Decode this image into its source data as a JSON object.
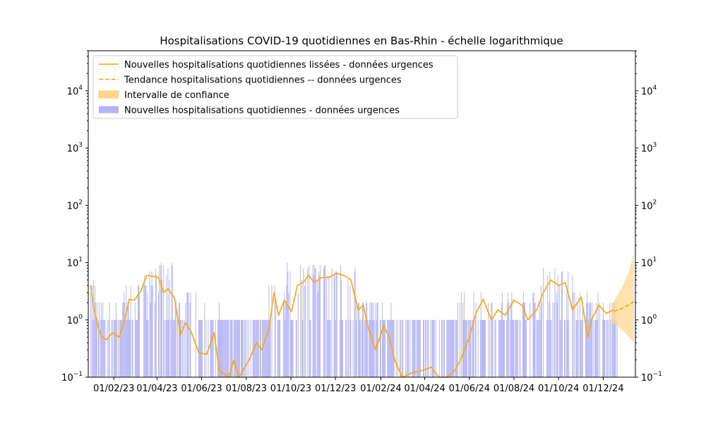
{
  "chart_data": {
    "type": "bar",
    "title": "Hospitalisations COVID-19 quotidiennes en Bas-Rhin - échelle logarithmique",
    "xlabel": "",
    "ylabel": "",
    "y_scale": "log",
    "ylim": [
      0.1,
      50000
    ],
    "xlim": [
      "2022-12-28",
      "2025-01-14"
    ],
    "x_tick_labels": [
      "01/02/23",
      "01/04/23",
      "01/06/23",
      "01/08/23",
      "01/10/23",
      "01/12/23",
      "01/02/24",
      "01/04/24",
      "01/06/24",
      "01/08/24",
      "01/10/24",
      "01/12/24"
    ],
    "x_tick_dates": [
      "2023-02-01",
      "2023-04-01",
      "2023-06-01",
      "2023-08-01",
      "2023-10-01",
      "2023-12-01",
      "2024-02-01",
      "2024-04-01",
      "2024-06-01",
      "2024-08-01",
      "2024-10-01",
      "2024-12-01"
    ],
    "y_ticks": [
      {
        "value": 0.1,
        "base": "10",
        "exp": "−1"
      },
      {
        "value": 1,
        "base": "10",
        "exp": "0"
      },
      {
        "value": 10,
        "base": "10",
        "exp": "1"
      },
      {
        "value": 100,
        "base": "10",
        "exp": "2"
      },
      {
        "value": 1000,
        "base": "10",
        "exp": "3"
      },
      {
        "value": 10000,
        "base": "10",
        "exp": "4"
      }
    ],
    "grid": false,
    "legend_position": "top-left",
    "colors": {
      "bars": "#b3b3f5",
      "smoothed": "#ffa500",
      "trend": "#ffa500",
      "confidence": "#ffd68a"
    },
    "series": [
      {
        "name": "Nouvelles hospitalisations quotidiennes lissées - données urgences",
        "type": "line",
        "points": [
          [
            "2022-12-31",
            4.0
          ],
          [
            "2023-01-05",
            1.5
          ],
          [
            "2023-01-10",
            0.8
          ],
          [
            "2023-01-15",
            0.5
          ],
          [
            "2023-01-22",
            0.45
          ],
          [
            "2023-01-30",
            0.6
          ],
          [
            "2023-02-08",
            0.5
          ],
          [
            "2023-02-15",
            0.9
          ],
          [
            "2023-02-22",
            2.3
          ],
          [
            "2023-03-01",
            2.2
          ],
          [
            "2023-03-10",
            3.2
          ],
          [
            "2023-03-18",
            6.0
          ],
          [
            "2023-03-25",
            5.8
          ],
          [
            "2023-04-03",
            5.5
          ],
          [
            "2023-04-10",
            3.0
          ],
          [
            "2023-04-16",
            3.5
          ],
          [
            "2023-04-25",
            2.4
          ],
          [
            "2023-05-03",
            0.55
          ],
          [
            "2023-05-10",
            0.9
          ],
          [
            "2023-05-18",
            0.6
          ],
          [
            "2023-05-28",
            0.27
          ],
          [
            "2023-06-08",
            0.25
          ],
          [
            "2023-06-18",
            0.6
          ],
          [
            "2023-06-25",
            0.13
          ],
          [
            "2023-07-08",
            0.1
          ],
          [
            "2023-07-15",
            0.2
          ],
          [
            "2023-07-22",
            0.1
          ],
          [
            "2023-08-05",
            0.2
          ],
          [
            "2023-08-15",
            0.4
          ],
          [
            "2023-08-22",
            0.3
          ],
          [
            "2023-09-01",
            0.7
          ],
          [
            "2023-09-08",
            3.0
          ],
          [
            "2023-09-14",
            1.2
          ],
          [
            "2023-09-22",
            2.2
          ],
          [
            "2023-10-02",
            1.4
          ],
          [
            "2023-10-10",
            4.0
          ],
          [
            "2023-10-18",
            4.5
          ],
          [
            "2023-10-25",
            6.0
          ],
          [
            "2023-11-02",
            4.5
          ],
          [
            "2023-11-12",
            5.5
          ],
          [
            "2023-11-22",
            5.5
          ],
          [
            "2023-12-02",
            6.5
          ],
          [
            "2023-12-12",
            6.0
          ],
          [
            "2023-12-22",
            5.0
          ],
          [
            "2024-01-01",
            1.5
          ],
          [
            "2024-01-08",
            1.8
          ],
          [
            "2024-01-15",
            0.7
          ],
          [
            "2024-01-25",
            0.3
          ],
          [
            "2024-02-05",
            0.8
          ],
          [
            "2024-02-12",
            0.5
          ],
          [
            "2024-02-20",
            0.2
          ],
          [
            "2024-03-01",
            0.1
          ],
          [
            "2024-03-15",
            0.12
          ],
          [
            "2024-03-28",
            0.13
          ],
          [
            "2024-04-10",
            0.15
          ],
          [
            "2024-04-20",
            0.1
          ],
          [
            "2024-05-01",
            0.1
          ],
          [
            "2024-05-12",
            0.13
          ],
          [
            "2024-05-20",
            0.2
          ],
          [
            "2024-06-01",
            0.5
          ],
          [
            "2024-06-10",
            1.3
          ],
          [
            "2024-06-20",
            2.3
          ],
          [
            "2024-07-01",
            1.0
          ],
          [
            "2024-07-10",
            1.5
          ],
          [
            "2024-07-20",
            1.2
          ],
          [
            "2024-08-01",
            2.2
          ],
          [
            "2024-08-12",
            1.8
          ],
          [
            "2024-08-20",
            1.0
          ],
          [
            "2024-09-01",
            1.5
          ],
          [
            "2024-09-10",
            3.0
          ],
          [
            "2024-09-20",
            5.0
          ],
          [
            "2024-10-01",
            4.0
          ],
          [
            "2024-10-10",
            4.5
          ],
          [
            "2024-10-20",
            1.5
          ],
          [
            "2024-11-01",
            2.5
          ],
          [
            "2024-11-10",
            0.5
          ],
          [
            "2024-11-15",
            1.0
          ],
          [
            "2024-11-25",
            1.8
          ],
          [
            "2024-12-05",
            1.3
          ],
          [
            "2024-12-15",
            1.5
          ]
        ]
      },
      {
        "name": "Tendance hospitalisations quotidiennes -- données urgences",
        "type": "line-dashed",
        "points": [
          [
            "2024-12-15",
            1.4
          ],
          [
            "2024-12-25",
            1.55
          ],
          [
            "2025-01-04",
            1.8
          ],
          [
            "2025-01-12",
            2.1
          ]
        ]
      },
      {
        "name": "Intervalle de confiance",
        "type": "band",
        "points": [
          [
            "2024-12-12",
            0.9,
            1.8
          ],
          [
            "2024-12-20",
            0.8,
            2.6
          ],
          [
            "2024-12-28",
            0.65,
            4.0
          ],
          [
            "2025-01-05",
            0.5,
            7.0
          ],
          [
            "2025-01-12",
            0.4,
            15.0
          ]
        ]
      },
      {
        "name": "Nouvelles hospitalisations quotidiennes - données urgences",
        "type": "bar",
        "start_date": "2022-12-30",
        "end_date": "2024-12-20",
        "daily_levels": [
          {
            "from": "2022-12-30",
            "to": "2023-01-08",
            "level": 3.0
          },
          {
            "from": "2023-01-09",
            "to": "2023-02-12",
            "level": 1.0
          },
          {
            "from": "2023-02-13",
            "to": "2023-03-12",
            "level": 2.0
          },
          {
            "from": "2023-03-13",
            "to": "2023-04-22",
            "level": 5.0
          },
          {
            "from": "2023-04-23",
            "to": "2023-05-25",
            "level": 1.5
          },
          {
            "from": "2023-05-26",
            "to": "2023-06-30",
            "level": 0.8
          },
          {
            "from": "2023-07-01",
            "to": "2023-08-31",
            "level": 0.6
          },
          {
            "from": "2023-09-01",
            "to": "2023-09-25",
            "level": 2.0
          },
          {
            "from": "2023-09-26",
            "to": "2023-12-28",
            "level": 5.0
          },
          {
            "from": "2023-12-29",
            "to": "2024-02-15",
            "level": 1.2
          },
          {
            "from": "2024-02-16",
            "to": "2024-05-15",
            "level": 0.7
          },
          {
            "from": "2024-05-16",
            "to": "2024-09-05",
            "level": 1.5
          },
          {
            "from": "2024-09-06",
            "to": "2024-10-20",
            "level": 4.0
          },
          {
            "from": "2024-10-21",
            "to": "2024-12-20",
            "level": 1.5
          }
        ]
      }
    ]
  }
}
